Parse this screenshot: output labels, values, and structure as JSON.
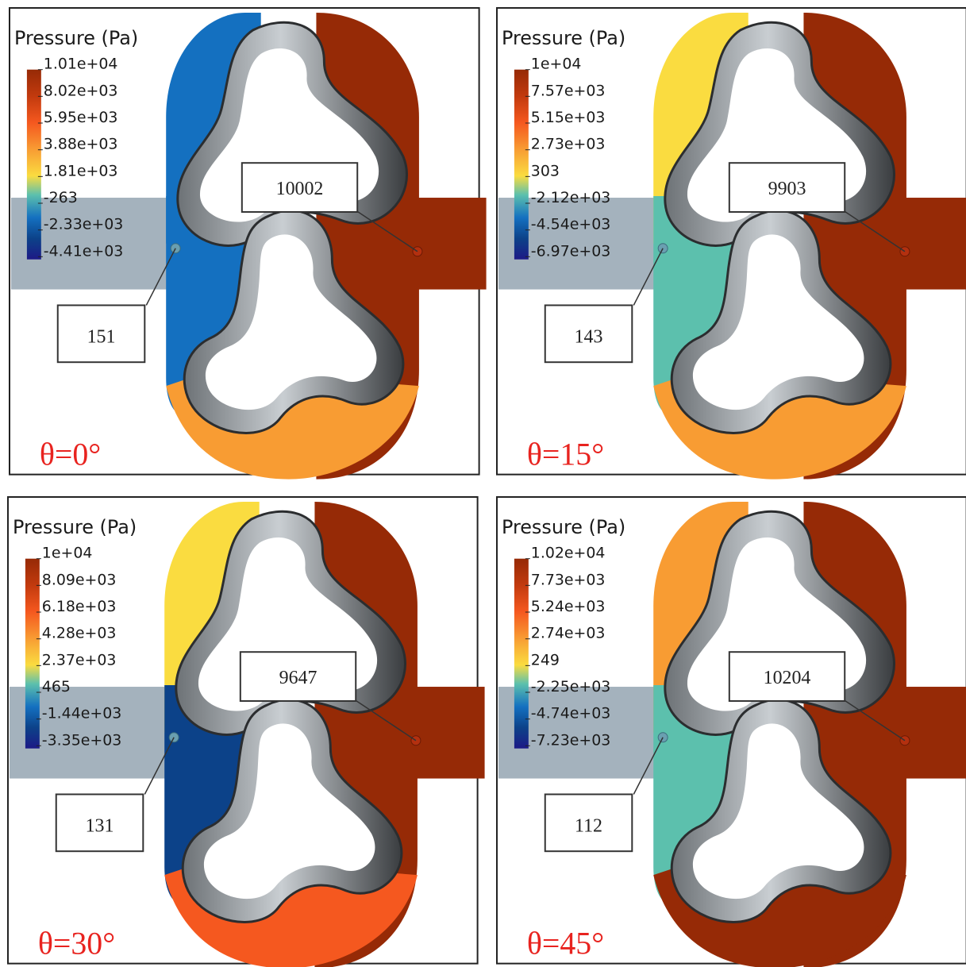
{
  "colors": {
    "dark_red": "#962a06",
    "red_orange": "#f5581f",
    "orange": "#f89c33",
    "yellow": "#fadc40",
    "teal": "#5cc0ad",
    "blue": "#1470c0",
    "dark_blue": "#0c4289",
    "navy": "#1d1a86",
    "pipe_grey": "#a4b2bd",
    "wall_grey": "#8c9195"
  },
  "panels": [
    {
      "legend_title": "Pressure (Pa)",
      "legend_labels": [
        "1.01e+04",
        "8.02e+03",
        "5.95e+03",
        "3.88e+03",
        "1.81e+03",
        "-263",
        "-2.33e+03",
        "-4.41e+03"
      ],
      "left_value": "151",
      "right_value": "10002",
      "angle": "θ=0°",
      "zone_top_left": "blue",
      "zone_mid_left": "blue",
      "zone_bottom": "orange",
      "zone_right": "dark_red"
    },
    {
      "legend_title": "Pressure (Pa)",
      "legend_labels": [
        "1e+04",
        "7.57e+03",
        "5.15e+03",
        "2.73e+03",
        "303",
        "-2.12e+03",
        "-4.54e+03",
        "-6.97e+03"
      ],
      "left_value": "143",
      "right_value": "9903",
      "angle": "θ=15°",
      "zone_top_left": "yellow",
      "zone_mid_left": "teal",
      "zone_bottom": "orange",
      "zone_right": "dark_red"
    },
    {
      "legend_title": "Pressure (Pa)",
      "legend_labels": [
        "1e+04",
        "8.09e+03",
        "6.18e+03",
        "4.28e+03",
        "2.37e+03",
        "465",
        "-1.44e+03",
        "-3.35e+03"
      ],
      "left_value": "131",
      "right_value": "9647",
      "angle": "θ=30°",
      "zone_top_left": "yellow",
      "zone_mid_left": "dark_blue",
      "zone_bottom": "red_orange",
      "zone_right": "dark_red"
    },
    {
      "legend_title": "Pressure (Pa)",
      "legend_labels": [
        "1.02e+04",
        "7.73e+03",
        "5.24e+03",
        "2.74e+03",
        "249",
        "-2.25e+03",
        "-4.74e+03",
        "-7.23e+03"
      ],
      "left_value": "112",
      "right_value": "10204",
      "angle": "θ=45°",
      "zone_top_left": "orange",
      "zone_mid_left": "teal",
      "zone_bottom": "dark_red",
      "zone_right": "dark_red"
    }
  ]
}
